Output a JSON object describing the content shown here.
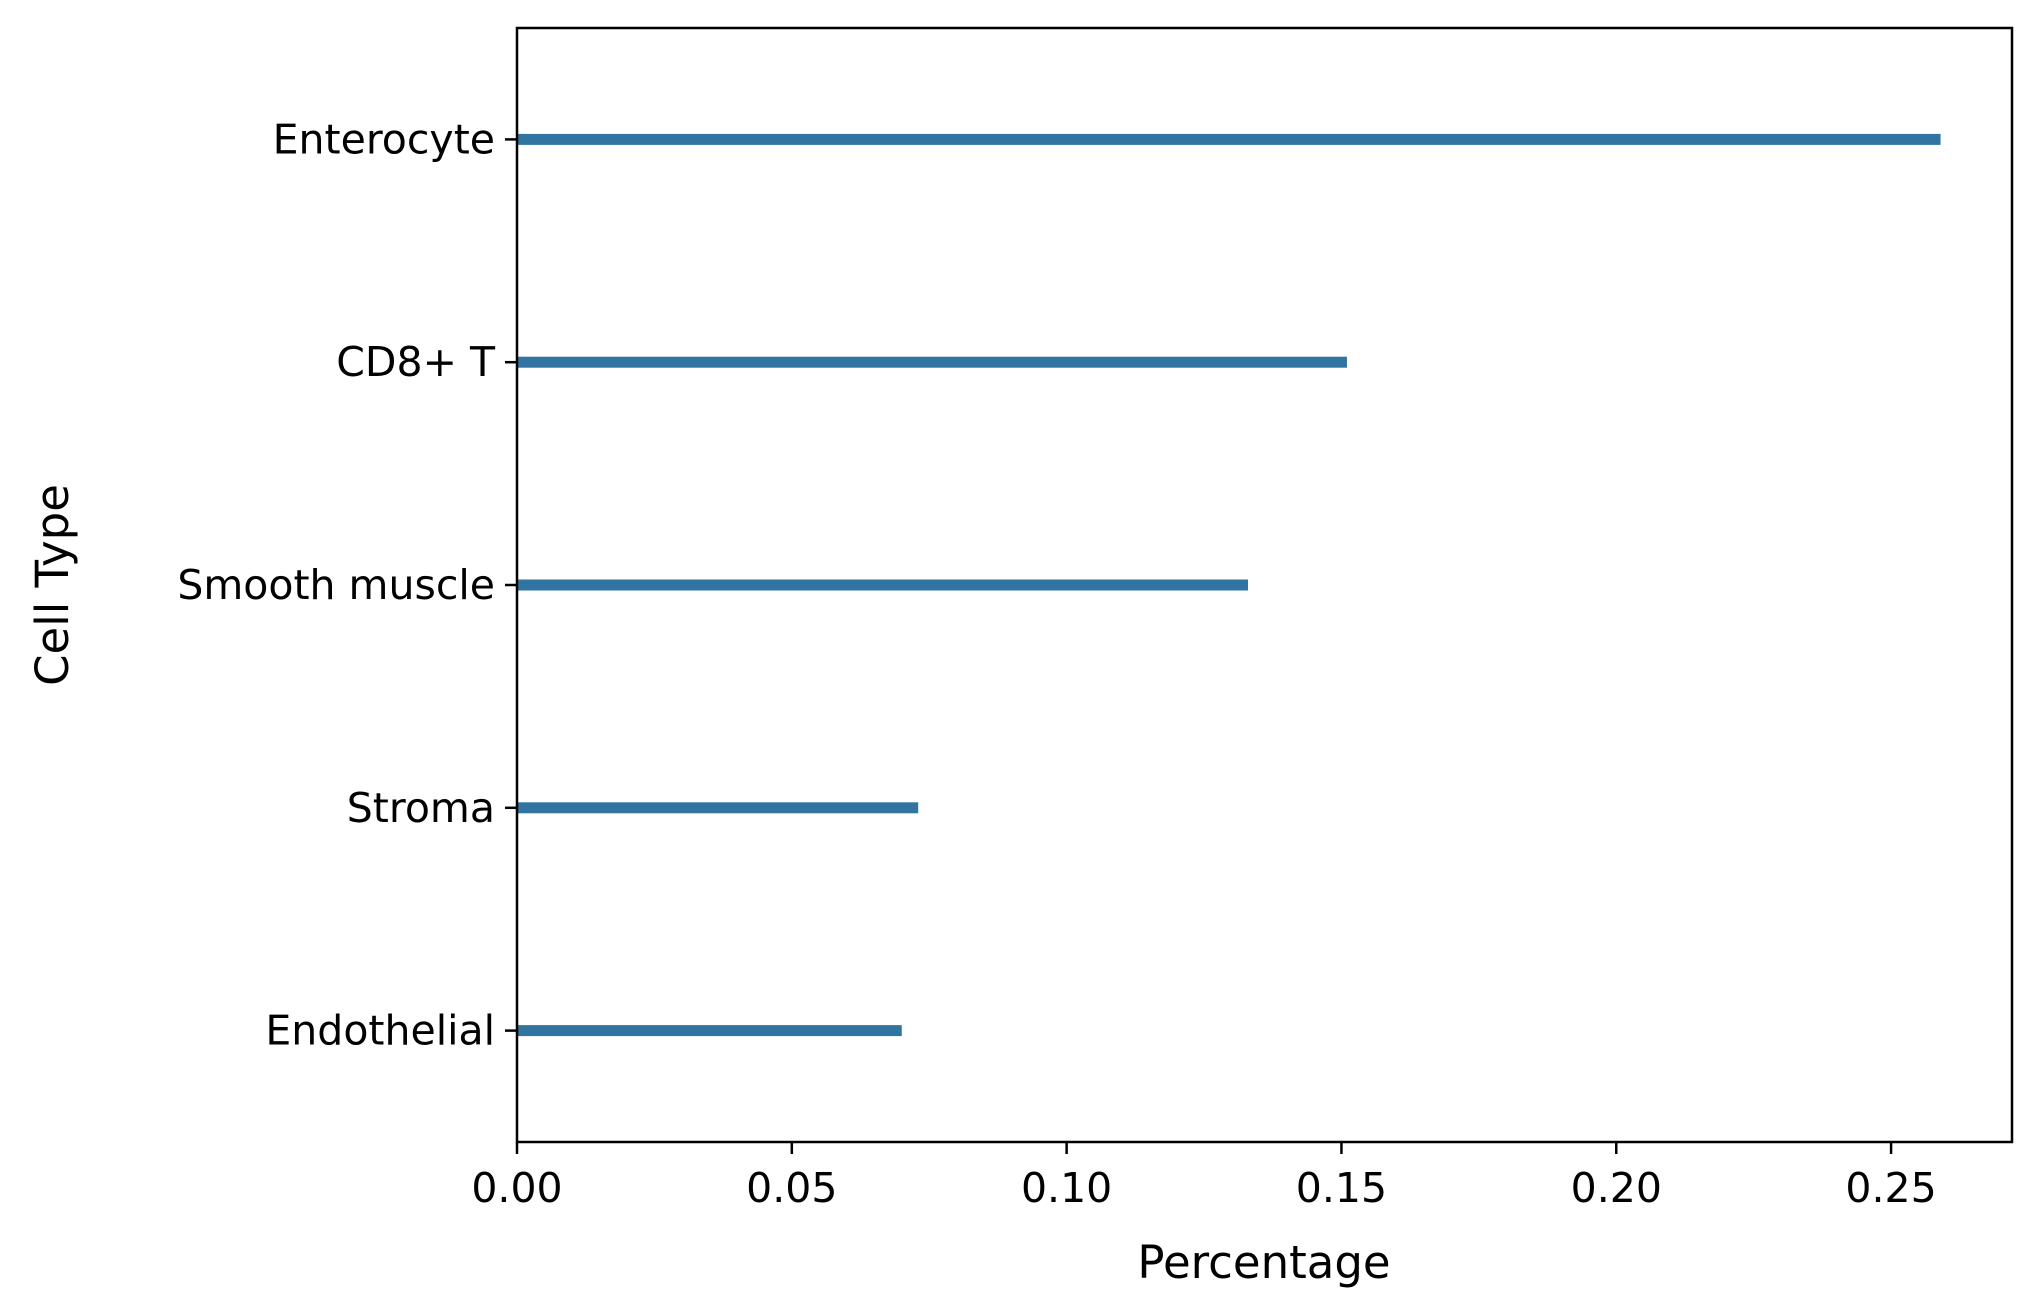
{
  "chart_data": {
    "type": "bar",
    "orientation": "horizontal",
    "title": "",
    "xlabel": "Percentage",
    "ylabel": "Cell Type",
    "xlim": [
      0,
      0.272
    ],
    "xticks": [
      0.0,
      0.05,
      0.1,
      0.15,
      0.2,
      0.25
    ],
    "xtick_labels": [
      "0.00",
      "0.05",
      "0.10",
      "0.15",
      "0.20",
      "0.25"
    ],
    "categories": [
      "Enterocyte",
      "CD8+ T",
      "Smooth muscle",
      "Stroma",
      "Endothelial"
    ],
    "values": [
      0.259,
      0.151,
      0.133,
      0.073,
      0.07
    ],
    "bar_color": "#3274a1",
    "grid": false,
    "legend": "none"
  }
}
